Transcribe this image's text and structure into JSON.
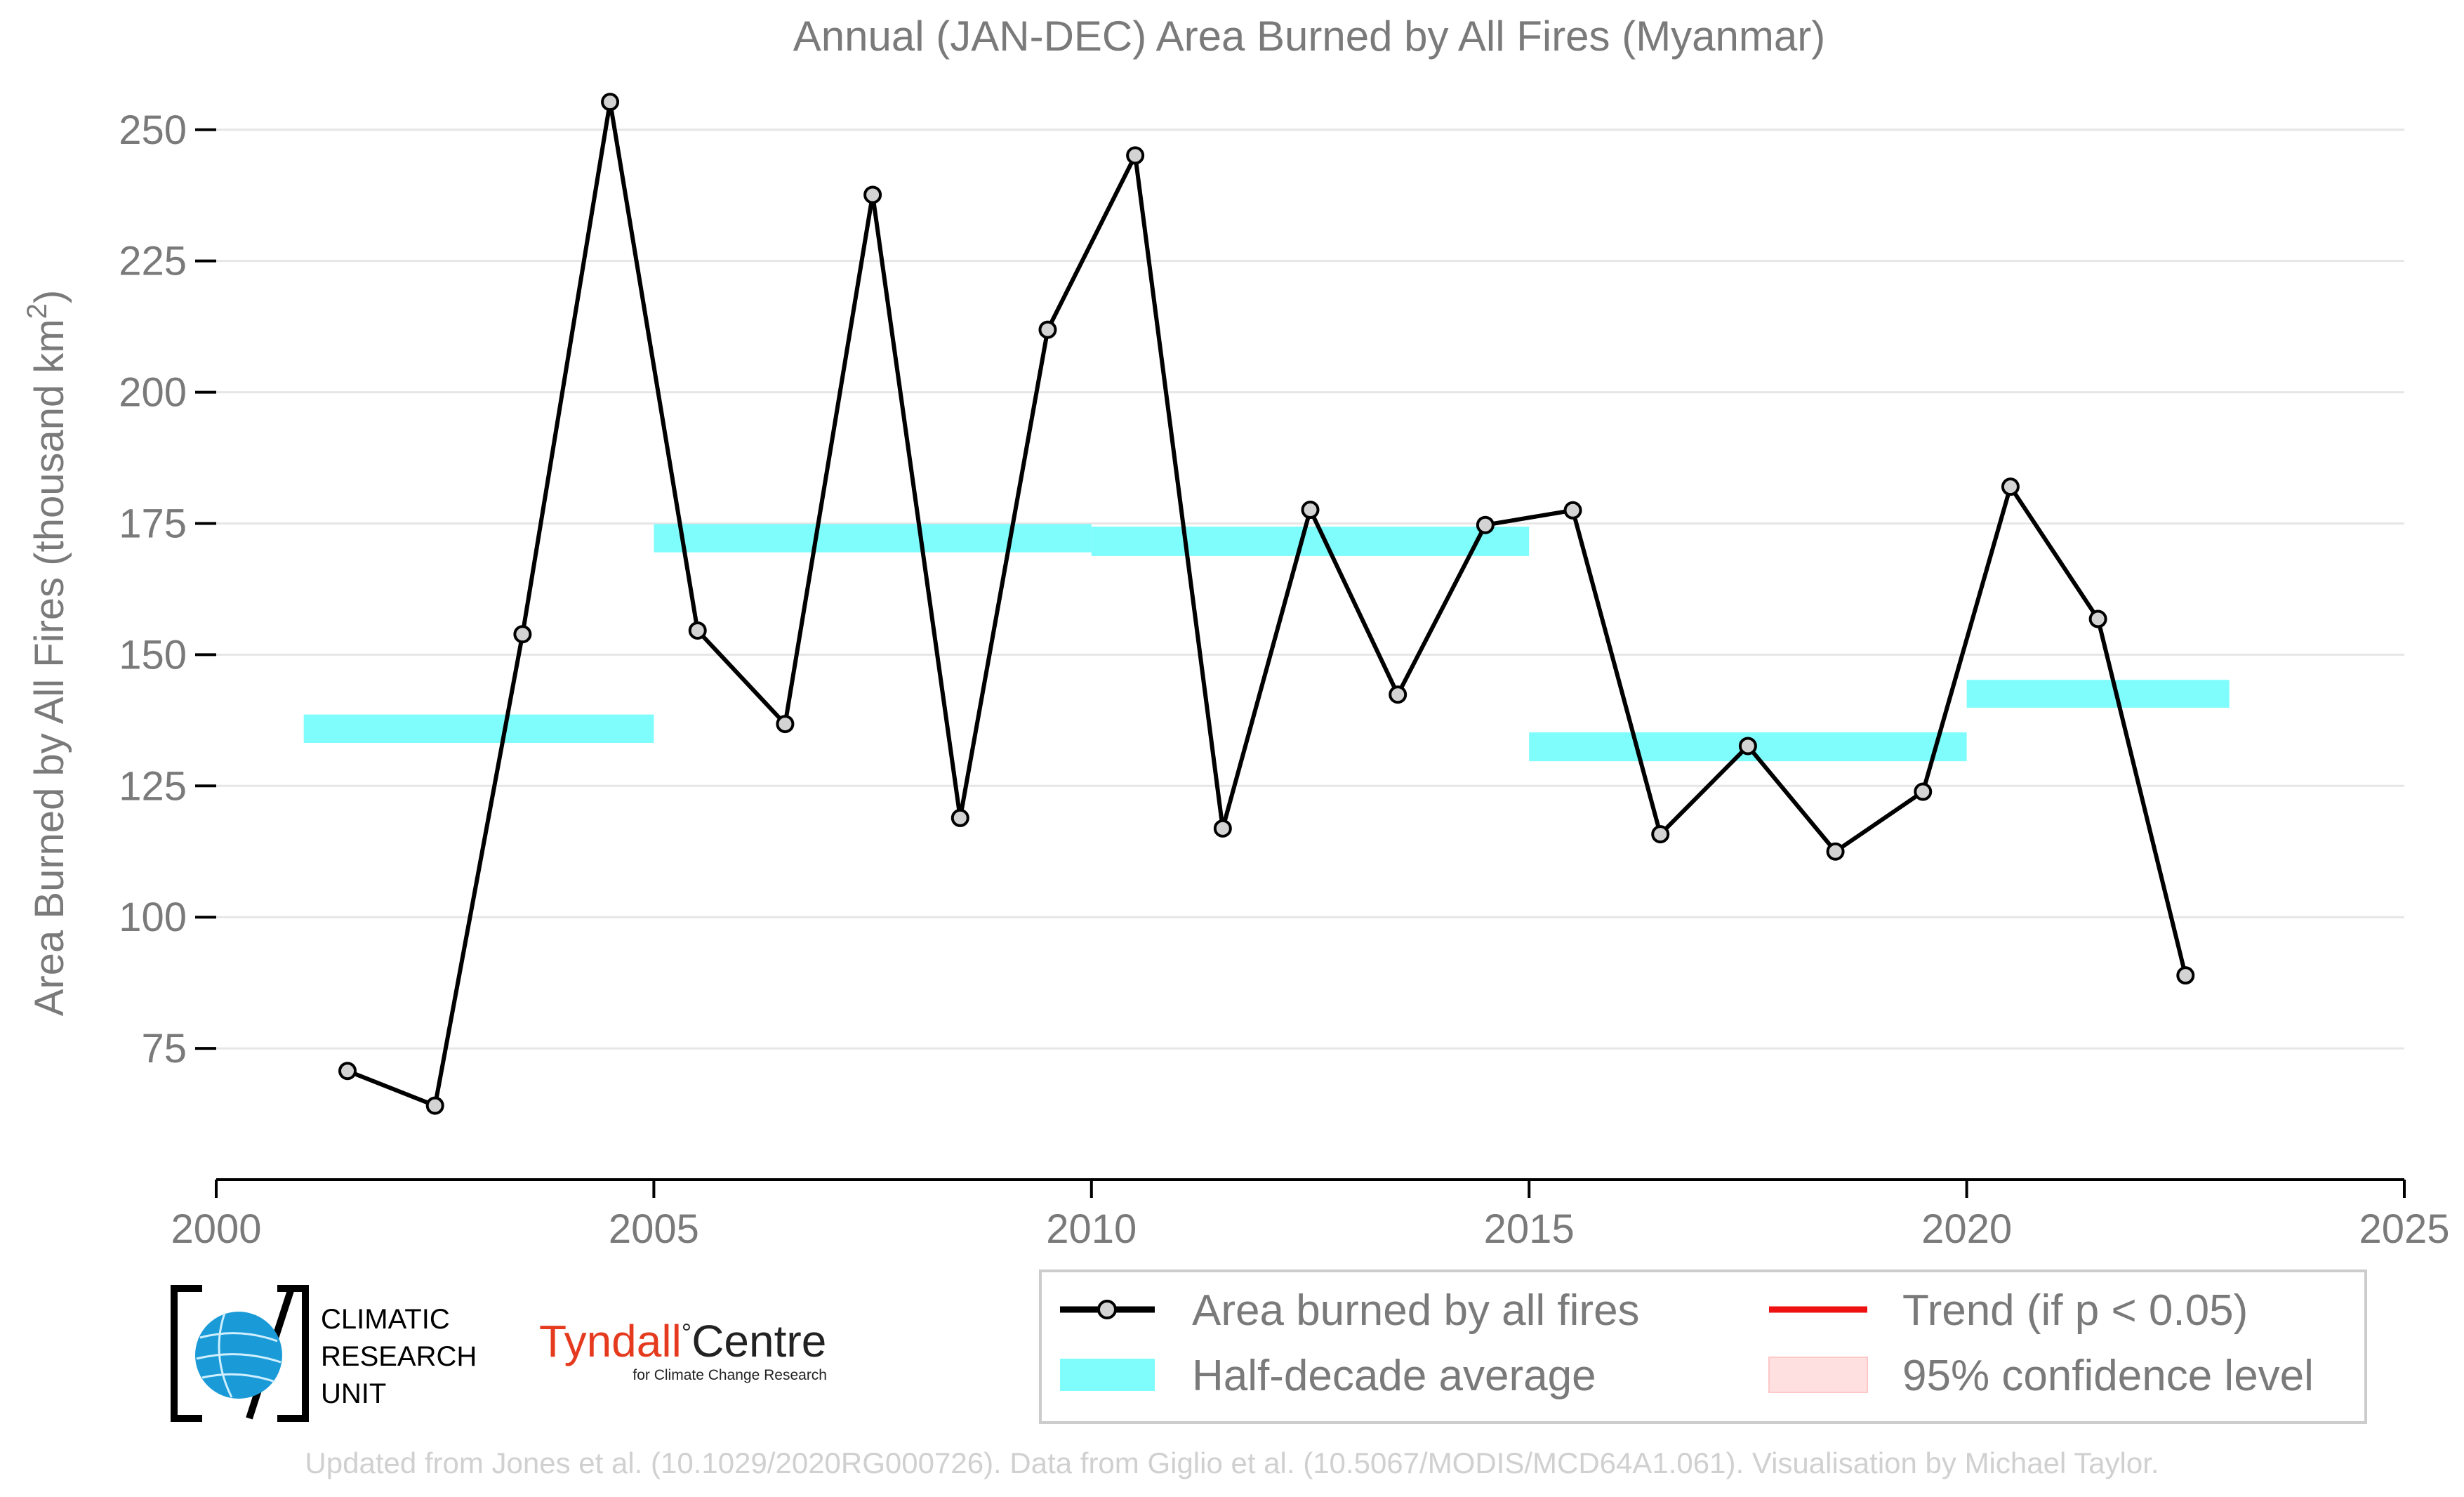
{
  "chart_data": {
    "type": "line",
    "title": "Annual (JAN-DEC) Area Burned by All Fires (Myanmar)",
    "ylabel": "Area Burned by All Fires (thousand km",
    "ylabel_sup": "2",
    "ylabel_end": ")",
    "xlim": [
      2000,
      2025
    ],
    "ylim": [
      50,
      260
    ],
    "grid": "horizontal",
    "legend_position": "bottom-right",
    "x_ticks": [
      {
        "value": 2000,
        "label": "2000"
      },
      {
        "value": 2005,
        "label": "2005"
      },
      {
        "value": 2010,
        "label": "2010"
      },
      {
        "value": 2015,
        "label": "2015"
      },
      {
        "value": 2020,
        "label": "2020"
      },
      {
        "value": 2025,
        "label": "2025"
      }
    ],
    "y_ticks": [
      {
        "value": 75,
        "label": "75"
      },
      {
        "value": 100,
        "label": "100"
      },
      {
        "value": 125,
        "label": "125"
      },
      {
        "value": 150,
        "label": "150"
      },
      {
        "value": 175,
        "label": "175"
      },
      {
        "value": 200,
        "label": "200"
      },
      {
        "value": 225,
        "label": "225"
      },
      {
        "value": 250,
        "label": "250"
      }
    ],
    "series": [
      {
        "name": "Area burned by all fires",
        "color": "#000000",
        "marker_fill": "#d3d3d3",
        "x": [
          2001.5,
          2002.5,
          2003.5,
          2004.5,
          2005.5,
          2006.5,
          2007.5,
          2008.5,
          2009.5,
          2010.5,
          2011.5,
          2012.5,
          2013.5,
          2014.5,
          2015.5,
          2016.5,
          2017.5,
          2018.5,
          2019.5,
          2020.5,
          2021.5,
          2022.5
        ],
        "y": [
          70.7,
          64.1,
          153.9,
          255.3,
          154.6,
          136.8,
          237.6,
          118.9,
          211.9,
          245.1,
          116.9,
          177.6,
          142.4,
          174.7,
          177.5,
          115.8,
          132.6,
          112.5,
          123.9,
          182.0,
          156.8,
          88.9
        ]
      }
    ],
    "half_decade_averages": {
      "name": "Half-decade average",
      "color": "#7ffcfc",
      "segments": [
        {
          "x_start": 2001,
          "x_end": 2005,
          "value": 136.0,
          "low": 133.2,
          "high": 138.6
        },
        {
          "x_start": 2005,
          "x_end": 2010,
          "value": 172.0,
          "low": 169.5,
          "high": 174.9
        },
        {
          "x_start": 2010,
          "x_end": 2015,
          "value": 171.3,
          "low": 168.8,
          "high": 174.4
        },
        {
          "x_start": 2015,
          "x_end": 2020,
          "value": 132.4,
          "low": 129.7,
          "high": 135.2
        },
        {
          "x_start": 2020,
          "x_end": 2023,
          "value": 142.6,
          "low": 139.9,
          "high": 145.2
        }
      ]
    },
    "legend": [
      {
        "key": "line_marker",
        "label": "Area burned by all fires",
        "color": "#000000"
      },
      {
        "key": "trend",
        "label": "Trend (if p < 0.05)",
        "color": "#ee1111"
      },
      {
        "key": "band",
        "label": "Half-decade average",
        "color": "#7ffcfc"
      },
      {
        "key": "ci",
        "label": "95% confidence level",
        "color": "#ffe0e0"
      }
    ]
  },
  "logos": {
    "cru_text": [
      "CLIMATIC",
      "RESEARCH",
      "UNIT"
    ],
    "tyndall_left": "Tyndall",
    "tyndall_degree": "°",
    "tyndall_right": "Centre",
    "tyndall_sub": "for Climate Change Research"
  },
  "footer": "Updated from Jones et al. (10.1029/2020RG000726). Data from Giglio et al. (10.5067/MODIS/MCD64A1.061). Visualisation by Michael Taylor."
}
